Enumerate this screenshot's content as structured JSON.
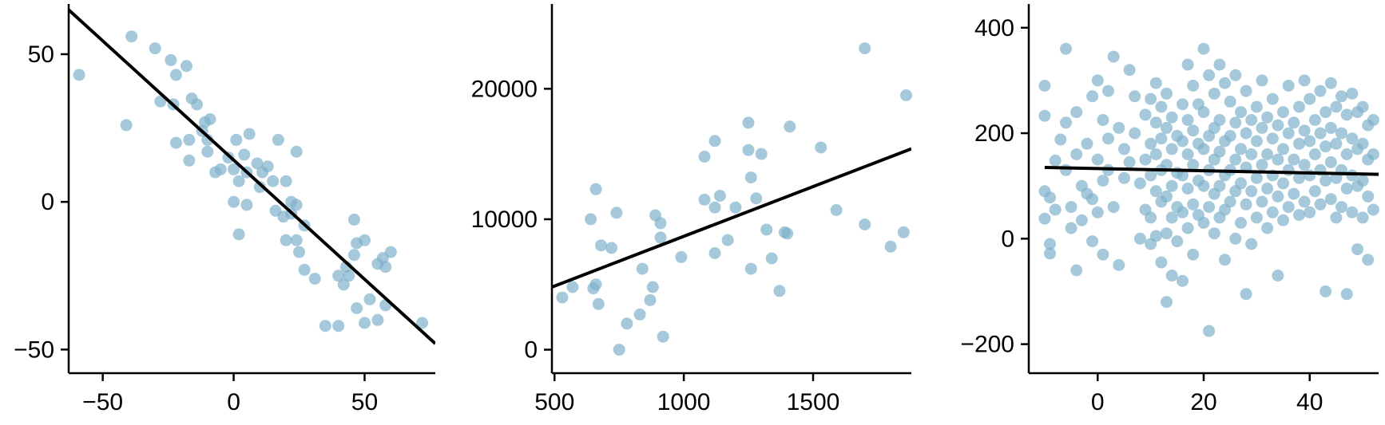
{
  "colors": {
    "point": "#7fb2cb",
    "point_opacity": 0.7,
    "line": "#000000"
  },
  "chart_data": [
    {
      "type": "scatter",
      "title": "",
      "xlabel": "",
      "ylabel": "",
      "xlim": [
        -63,
        77
      ],
      "ylim": [
        -58,
        67
      ],
      "xticks": [
        -50,
        0,
        50
      ],
      "yticks": [
        -50,
        0,
        50
      ],
      "xtick_labels": [
        "−50",
        "0",
        "50"
      ],
      "ytick_labels": [
        "−50",
        "0",
        "50"
      ],
      "fit_line": [
        [
          -63,
          65
        ],
        [
          77,
          -48
        ]
      ],
      "points": [
        [
          -59,
          43
        ],
        [
          -39,
          56
        ],
        [
          -41,
          26
        ],
        [
          -30,
          52
        ],
        [
          -24,
          48
        ],
        [
          -18,
          46
        ],
        [
          -22,
          43
        ],
        [
          -16,
          35
        ],
        [
          -14,
          33
        ],
        [
          -11,
          27
        ],
        [
          -12,
          24
        ],
        [
          -9,
          28
        ],
        [
          -10,
          21
        ],
        [
          -17,
          21
        ],
        [
          -17,
          14
        ],
        [
          -23,
          33
        ],
        [
          -28,
          34
        ],
        [
          -22,
          20
        ],
        [
          -10,
          17
        ],
        [
          -7,
          10
        ],
        [
          -5,
          11
        ],
        [
          -2,
          15
        ],
        [
          1,
          21
        ],
        [
          4,
          16
        ],
        [
          6,
          23
        ],
        [
          0,
          11
        ],
        [
          2,
          7
        ],
        [
          5,
          10
        ],
        [
          9,
          13
        ],
        [
          11,
          10
        ],
        [
          13,
          12
        ],
        [
          15,
          7
        ],
        [
          17,
          21
        ],
        [
          20,
          7
        ],
        [
          22,
          0
        ],
        [
          24,
          17
        ],
        [
          24,
          -1
        ],
        [
          22,
          -4
        ],
        [
          19,
          -5
        ],
        [
          16,
          -3
        ],
        [
          10,
          5
        ],
        [
          5,
          -1
        ],
        [
          0,
          0
        ],
        [
          2,
          -11
        ],
        [
          20,
          -13
        ],
        [
          24,
          -13
        ],
        [
          27,
          -8
        ],
        [
          25,
          -17
        ],
        [
          27,
          -23
        ],
        [
          31,
          -26
        ],
        [
          35,
          -42
        ],
        [
          40,
          -42
        ],
        [
          40,
          -25
        ],
        [
          42,
          -28
        ],
        [
          43,
          -22
        ],
        [
          44,
          -25
        ],
        [
          46,
          -18
        ],
        [
          47,
          -14
        ],
        [
          46,
          -6
        ],
        [
          50,
          -13
        ],
        [
          52,
          -33
        ],
        [
          47,
          -36
        ],
        [
          50,
          -41
        ],
        [
          55,
          -21
        ],
        [
          57,
          -19
        ],
        [
          60,
          -17
        ],
        [
          58,
          -22
        ],
        [
          55,
          -40
        ],
        [
          58,
          -35
        ],
        [
          72,
          -41
        ]
      ]
    },
    {
      "type": "scatter",
      "title": "",
      "xlabel": "",
      "ylabel": "",
      "xlim": [
        490,
        1880
      ],
      "ylim": [
        -1800,
        26500
      ],
      "xticks": [
        500,
        1000,
        1500
      ],
      "yticks": [
        0,
        10000,
        20000
      ],
      "xtick_labels": [
        "500",
        "1000",
        "1500"
      ],
      "ytick_labels": [
        "0",
        "10000",
        "20000"
      ],
      "fit_line": [
        [
          490,
          4800
        ],
        [
          1880,
          15400
        ]
      ],
      "points": [
        [
          530,
          4000
        ],
        [
          570,
          4800
        ],
        [
          640,
          10000
        ],
        [
          650,
          4700
        ],
        [
          660,
          12300
        ],
        [
          660,
          5000
        ],
        [
          670,
          3500
        ],
        [
          680,
          8000
        ],
        [
          720,
          7800
        ],
        [
          740,
          10500
        ],
        [
          750,
          0
        ],
        [
          780,
          2000
        ],
        [
          830,
          2700
        ],
        [
          840,
          6200
        ],
        [
          870,
          3800
        ],
        [
          880,
          4800
        ],
        [
          890,
          10300
        ],
        [
          910,
          9700
        ],
        [
          910,
          8600
        ],
        [
          920,
          1000
        ],
        [
          990,
          7100
        ],
        [
          1080,
          14800
        ],
        [
          1080,
          11500
        ],
        [
          1120,
          10900
        ],
        [
          1120,
          16000
        ],
        [
          1120,
          7400
        ],
        [
          1140,
          11800
        ],
        [
          1170,
          8400
        ],
        [
          1200,
          10900
        ],
        [
          1250,
          17400
        ],
        [
          1250,
          15300
        ],
        [
          1260,
          13200
        ],
        [
          1260,
          6200
        ],
        [
          1280,
          11600
        ],
        [
          1300,
          15000
        ],
        [
          1320,
          9200
        ],
        [
          1340,
          7000
        ],
        [
          1370,
          4500
        ],
        [
          1390,
          9000
        ],
        [
          1400,
          8900
        ],
        [
          1410,
          17100
        ],
        [
          1530,
          15500
        ],
        [
          1590,
          10700
        ],
        [
          1700,
          23100
        ],
        [
          1700,
          9600
        ],
        [
          1800,
          7900
        ],
        [
          1850,
          9000
        ],
        [
          1860,
          19500
        ]
      ]
    },
    {
      "type": "scatter",
      "title": "",
      "xlabel": "",
      "ylabel": "",
      "xlim": [
        -13,
        53
      ],
      "ylim": [
        -255,
        445
      ],
      "xticks": [
        0,
        20,
        40
      ],
      "yticks": [
        -200,
        0,
        200,
        400
      ],
      "xtick_labels": [
        "0",
        "20",
        "40"
      ],
      "ytick_labels": [
        "−200",
        "0",
        "200",
        "400"
      ],
      "fit_line": [
        [
          -10,
          135
        ],
        [
          53,
          122
        ]
      ],
      "points": [
        [
          -10,
          233
        ],
        [
          -10,
          290
        ],
        [
          -10,
          90
        ],
        [
          -10,
          38
        ],
        [
          -9,
          -10
        ],
        [
          -9,
          78
        ],
        [
          -9,
          -28
        ],
        [
          -8,
          55
        ],
        [
          -8,
          148
        ],
        [
          -7,
          188
        ],
        [
          -6,
          360
        ],
        [
          -6,
          220
        ],
        [
          -6,
          130
        ],
        [
          -5,
          60
        ],
        [
          -5,
          20
        ],
        [
          -4,
          240
        ],
        [
          -4,
          160
        ],
        [
          -4,
          -60
        ],
        [
          -3,
          100
        ],
        [
          -3,
          35
        ],
        [
          -2,
          180
        ],
        [
          -2,
          85
        ],
        [
          -1,
          270
        ],
        [
          -1,
          75
        ],
        [
          -1,
          -5
        ],
        [
          0,
          300
        ],
        [
          0,
          150
        ],
        [
          0,
          50
        ],
        [
          1,
          225
        ],
        [
          1,
          110
        ],
        [
          1,
          -30
        ],
        [
          2,
          280
        ],
        [
          2,
          190
        ],
        [
          2,
          130
        ],
        [
          3,
          345
        ],
        [
          3,
          60
        ],
        [
          4,
          210
        ],
        [
          4,
          -50
        ],
        [
          5,
          115
        ],
        [
          5,
          170
        ],
        [
          6,
          320
        ],
        [
          6,
          145
        ],
        [
          7,
          270
        ],
        [
          7,
          200
        ],
        [
          8,
          105
        ],
        [
          8,
          0
        ],
        [
          9,
          235
        ],
        [
          9,
          150
        ],
        [
          9,
          55
        ],
        [
          10,
          265
        ],
        [
          10,
          180
        ],
        [
          10,
          120
        ],
        [
          10,
          40
        ],
        [
          10,
          -10
        ],
        [
          11,
          295
        ],
        [
          11,
          220
        ],
        [
          11,
          160
        ],
        [
          11,
          90
        ],
        [
          11,
          5
        ],
        [
          12,
          250
        ],
        [
          12,
          190
        ],
        [
          12,
          130
        ],
        [
          12,
          70
        ],
        [
          12,
          -45
        ],
        [
          13,
          275
        ],
        [
          13,
          210
        ],
        [
          13,
          140
        ],
        [
          13,
          80
        ],
        [
          13,
          10
        ],
        [
          13,
          -120
        ],
        [
          14,
          230
        ],
        [
          14,
          170
        ],
        [
          14,
          100
        ],
        [
          14,
          40
        ],
        [
          14,
          -70
        ],
        [
          15,
          195
        ],
        [
          15,
          125
        ],
        [
          15,
          60
        ],
        [
          15,
          -5
        ],
        [
          16,
          255
        ],
        [
          16,
          185
        ],
        [
          16,
          120
        ],
        [
          16,
          50
        ],
        [
          16,
          -80
        ],
        [
          17,
          330
        ],
        [
          17,
          225
        ],
        [
          17,
          160
        ],
        [
          17,
          95
        ],
        [
          17,
          20
        ],
        [
          18,
          290
        ],
        [
          18,
          205
        ],
        [
          18,
          140
        ],
        [
          18,
          65
        ],
        [
          18,
          -30
        ],
        [
          19,
          255
        ],
        [
          19,
          180
        ],
        [
          19,
          110
        ],
        [
          19,
          45
        ],
        [
          20,
          360
        ],
        [
          20,
          240
        ],
        [
          20,
          170
        ],
        [
          20,
          100
        ],
        [
          20,
          30
        ],
        [
          21,
          310
        ],
        [
          21,
          195
        ],
        [
          21,
          130
        ],
        [
          21,
          60
        ],
        [
          21,
          -175
        ],
        [
          22,
          275
        ],
        [
          22,
          210
        ],
        [
          22,
          150
        ],
        [
          22,
          85
        ],
        [
          22,
          10
        ],
        [
          23,
          330
        ],
        [
          23,
          225
        ],
        [
          23,
          165
        ],
        [
          23,
          100
        ],
        [
          23,
          40
        ],
        [
          24,
          295
        ],
        [
          24,
          185
        ],
        [
          24,
          120
        ],
        [
          24,
          55
        ],
        [
          24,
          -40
        ],
        [
          25,
          260
        ],
        [
          25,
          195
        ],
        [
          25,
          130
        ],
        [
          25,
          70
        ],
        [
          26,
          310
        ],
        [
          26,
          220
        ],
        [
          26,
          150
        ],
        [
          26,
          90
        ],
        [
          26,
          0
        ],
        [
          27,
          240
        ],
        [
          27,
          170
        ],
        [
          27,
          105
        ],
        [
          27,
          30
        ],
        [
          28,
          280
        ],
        [
          28,
          200
        ],
        [
          28,
          135
        ],
        [
          28,
          65
        ],
        [
          28,
          -105
        ],
        [
          29,
          225
        ],
        [
          29,
          160
        ],
        [
          29,
          90
        ],
        [
          29,
          -10
        ],
        [
          30,
          250
        ],
        [
          30,
          185
        ],
        [
          30,
          115
        ],
        [
          30,
          40
        ],
        [
          31,
          300
        ],
        [
          31,
          210
        ],
        [
          31,
          140
        ],
        [
          31,
          70
        ],
        [
          32,
          230
        ],
        [
          32,
          160
        ],
        [
          32,
          95
        ],
        [
          32,
          20
        ],
        [
          33,
          265
        ],
        [
          33,
          190
        ],
        [
          33,
          120
        ],
        [
          33,
          50
        ],
        [
          34,
          215
        ],
        [
          34,
          150
        ],
        [
          34,
          80
        ],
        [
          34,
          -70
        ],
        [
          35,
          240
        ],
        [
          35,
          170
        ],
        [
          35,
          105
        ],
        [
          35,
          35
        ],
        [
          36,
          290
        ],
        [
          36,
          200
        ],
        [
          36,
          130
        ],
        [
          36,
          60
        ],
        [
          37,
          220
        ],
        [
          37,
          150
        ],
        [
          37,
          85
        ],
        [
          38,
          250
        ],
        [
          38,
          180
        ],
        [
          38,
          115
        ],
        [
          38,
          45
        ],
        [
          39,
          300
        ],
        [
          39,
          205
        ],
        [
          39,
          140
        ],
        [
          39,
          70
        ],
        [
          40,
          265
        ],
        [
          40,
          185
        ],
        [
          40,
          120
        ],
        [
          40,
          50
        ],
        [
          41,
          225
        ],
        [
          41,
          160
        ],
        [
          41,
          90
        ],
        [
          42,
          280
        ],
        [
          42,
          200
        ],
        [
          42,
          130
        ],
        [
          42,
          65
        ],
        [
          43,
          240
        ],
        [
          43,
          175
        ],
        [
          43,
          110
        ],
        [
          43,
          -100
        ],
        [
          44,
          295
        ],
        [
          44,
          210
        ],
        [
          44,
          145
        ],
        [
          44,
          75
        ],
        [
          45,
          250
        ],
        [
          45,
          180
        ],
        [
          45,
          115
        ],
        [
          45,
          40
        ],
        [
          46,
          270
        ],
        [
          46,
          200
        ],
        [
          46,
          130
        ],
        [
          46,
          60
        ],
        [
          47,
          235
        ],
        [
          47,
          160
        ],
        [
          47,
          95
        ],
        [
          47,
          -105
        ],
        [
          48,
          275
        ],
        [
          48,
          190
        ],
        [
          48,
          120
        ],
        [
          48,
          50
        ],
        [
          49,
          240
        ],
        [
          49,
          170
        ],
        [
          49,
          100
        ],
        [
          49,
          -20
        ],
        [
          50,
          250
        ],
        [
          50,
          180
        ],
        [
          50,
          110
        ],
        [
          50,
          40
        ],
        [
          51,
          215
        ],
        [
          51,
          150
        ],
        [
          51,
          80
        ],
        [
          51,
          -40
        ],
        [
          52,
          225
        ],
        [
          52,
          160
        ],
        [
          52,
          55
        ]
      ]
    }
  ]
}
